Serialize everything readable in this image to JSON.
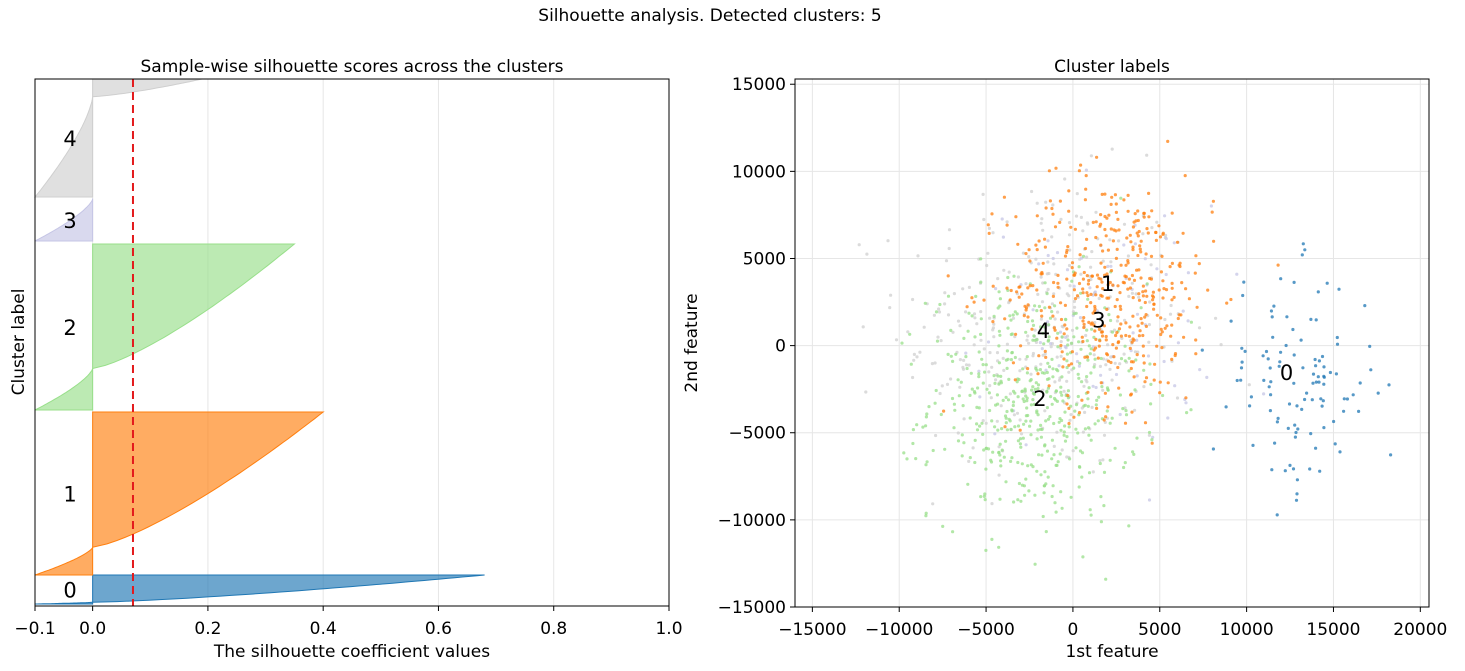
{
  "suptitle": "Silhouette analysis. Detected clusters: 5",
  "chart_data": [
    {
      "type": "area",
      "title": "Sample-wise silhouette scores across the clusters",
      "xlabel": "The silhouette coefficient values",
      "ylabel": "Cluster label",
      "xlim": [
        -0.1,
        1.0
      ],
      "xticks": [
        "−0.1",
        "0.0",
        "0.2",
        "0.4",
        "0.6",
        "0.8",
        "1.0"
      ],
      "xtick_values": [
        -0.1,
        0.0,
        0.2,
        0.4,
        0.6,
        0.8,
        1.0
      ],
      "grid": true,
      "reference_line": {
        "value": 0.07,
        "color": "#e31a1c",
        "style": "dashed"
      },
      "clusters": [
        {
          "label": "0",
          "size": 32,
          "max": 0.68,
          "min": -0.1,
          "neg_frac": 0.06,
          "color": "#1f77b4"
        },
        {
          "label": "1",
          "size": 180,
          "max": 0.4,
          "min": -0.1,
          "neg_frac": 0.17,
          "color": "#ff7f0e"
        },
        {
          "label": "2",
          "size": 180,
          "max": 0.35,
          "min": -0.1,
          "neg_frac": 0.25,
          "color": "#98df8a"
        },
        {
          "label": "3",
          "size": 45,
          "max": 0.0,
          "min": -0.1,
          "neg_frac": 1.0,
          "color": "#c5c5e5"
        },
        {
          "label": "4",
          "size": 130,
          "max": 0.19,
          "min": -0.1,
          "neg_frac": 0.85,
          "color": "#cfcfcf"
        }
      ]
    },
    {
      "type": "scatter",
      "title": "Cluster labels",
      "xlabel": "1st feature",
      "ylabel": "2nd feature",
      "xlim": [
        -16000,
        20500
      ],
      "ylim": [
        -15000,
        15300
      ],
      "xticks": [
        "−15000",
        "−10000",
        "−5000",
        "0",
        "5000",
        "10000",
        "15000",
        "20000"
      ],
      "xtick_values": [
        -15000,
        -10000,
        -5000,
        0,
        5000,
        10000,
        15000,
        20000
      ],
      "yticks": [
        "−15000",
        "−10000",
        "−5000",
        "0",
        "5000",
        "10000",
        "15000"
      ],
      "ytick_values": [
        -15000,
        -10000,
        -5000,
        0,
        5000,
        10000,
        15000
      ],
      "grid": true,
      "centers": [
        {
          "label": "0",
          "x": 12300,
          "y": -1500
        },
        {
          "label": "1",
          "x": 2000,
          "y": 3600
        },
        {
          "label": "2",
          "x": -1900,
          "y": -3000
        },
        {
          "label": "3",
          "x": 1500,
          "y": 1500
        },
        {
          "label": "4",
          "x": -1700,
          "y": 900
        }
      ],
      "series": [
        {
          "label": "0",
          "color": "#1f77b4",
          "count": 110,
          "mean": [
            12800,
            -2200
          ],
          "sd": [
            2400,
            3200
          ]
        },
        {
          "label": "1",
          "color": "#ff7f0e",
          "count": 420,
          "mean": [
            2200,
            3200
          ],
          "sd": [
            3000,
            3300
          ]
        },
        {
          "label": "2",
          "color": "#98df8a",
          "count": 480,
          "mean": [
            -2200,
            -3200
          ],
          "sd": [
            3000,
            3400
          ]
        },
        {
          "label": "3",
          "color": "#c5c5e5",
          "count": 90,
          "mean": [
            1200,
            1200
          ],
          "sd": [
            3500,
            3500
          ]
        },
        {
          "label": "4",
          "color": "#cfcfcf",
          "count": 330,
          "mean": [
            -1500,
            900
          ],
          "sd": [
            4200,
            4300
          ]
        }
      ]
    }
  ]
}
